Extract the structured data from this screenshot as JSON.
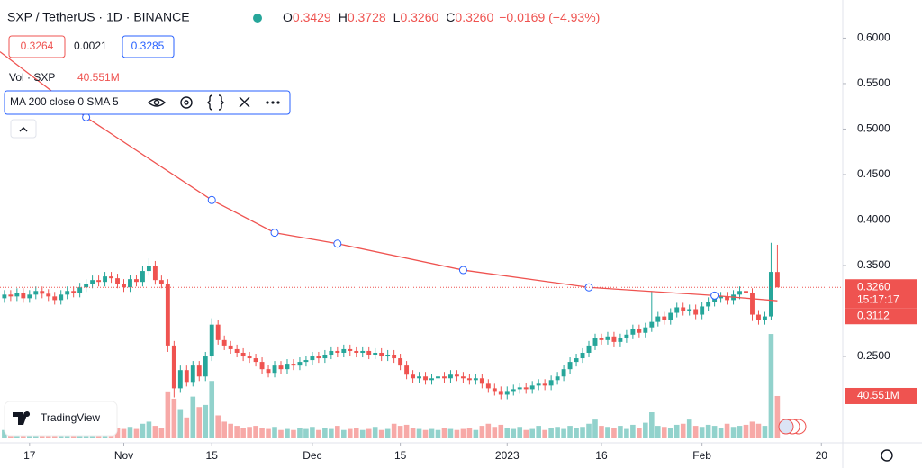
{
  "header": {
    "symbol": "SXP / TetherUS · 1D · BINANCE",
    "ohlc": [
      {
        "key": "O",
        "value": "0.3429"
      },
      {
        "key": "H",
        "value": "0.3728"
      },
      {
        "key": "L",
        "value": "0.3260"
      },
      {
        "key": "C",
        "value": "0.3260"
      }
    ],
    "change": "−0.0169 (−4.93%)",
    "bid": "0.3264",
    "spread": "0.0021",
    "ask": "0.3285"
  },
  "volume_legend": {
    "name": "Vol · SXP",
    "value": "40.551M"
  },
  "indicator_legend": "MA 200 close 0 SMA 5",
  "branding": "TradingView",
  "chart_data": {
    "type": "candlestick",
    "up_color": "#26a69a",
    "down_color": "#ef5350",
    "ylim": [
      0.155,
      0.642
    ],
    "yticks": [
      {
        "value": 0.6,
        "label": "0.6000"
      },
      {
        "value": 0.55,
        "label": "0.5500"
      },
      {
        "value": 0.5,
        "label": "0.5000"
      },
      {
        "value": 0.45,
        "label": "0.4500"
      },
      {
        "value": 0.4,
        "label": "0.4000"
      },
      {
        "value": 0.35,
        "label": "0.3500"
      },
      {
        "value": 0.25,
        "label": "0.2500"
      }
    ],
    "xlim": [
      -0.7,
      133.4
    ],
    "xticks": [
      {
        "value": 4,
        "label": "17"
      },
      {
        "value": 19,
        "label": "Nov"
      },
      {
        "value": 33,
        "label": "15"
      },
      {
        "value": 49,
        "label": "Dec"
      },
      {
        "value": 63,
        "label": "15"
      },
      {
        "value": 80,
        "label": "2023"
      },
      {
        "value": 95,
        "label": "16"
      },
      {
        "value": 111,
        "label": "Feb"
      },
      {
        "value": 130,
        "label": "20"
      }
    ],
    "open": [
      0.314,
      0.318,
      0.316,
      0.32,
      0.314,
      0.318,
      0.322,
      0.319,
      0.316,
      0.312,
      0.318,
      0.322,
      0.32,
      0.326,
      0.33,
      0.334,
      0.332,
      0.338,
      0.336,
      0.33,
      0.326,
      0.335,
      0.332,
      0.344,
      0.35,
      0.334,
      0.33,
      0.262,
      0.215,
      0.235,
      0.222,
      0.24,
      0.228,
      0.25,
      0.285,
      0.268,
      0.262,
      0.258,
      0.254,
      0.25,
      0.248,
      0.244,
      0.236,
      0.232,
      0.24,
      0.236,
      0.242,
      0.24,
      0.244,
      0.246,
      0.25,
      0.248,
      0.252,
      0.256,
      0.254,
      0.258,
      0.256,
      0.254,
      0.256,
      0.252,
      0.254,
      0.25,
      0.252,
      0.248,
      0.24,
      0.23,
      0.226,
      0.228,
      0.224,
      0.226,
      0.228,
      0.226,
      0.23,
      0.228,
      0.226,
      0.224,
      0.226,
      0.22,
      0.215,
      0.212,
      0.208,
      0.212,
      0.214,
      0.216,
      0.214,
      0.218,
      0.22,
      0.218,
      0.224,
      0.228,
      0.236,
      0.244,
      0.248,
      0.254,
      0.262,
      0.27,
      0.268,
      0.272,
      0.266,
      0.27,
      0.274,
      0.28,
      0.276,
      0.282,
      0.288,
      0.294,
      0.29,
      0.298,
      0.304,
      0.3,
      0.302,
      0.296,
      0.305,
      0.31,
      0.314,
      0.316,
      0.312,
      0.318,
      0.322,
      0.32,
      0.296,
      0.29,
      0.294,
      0.3429
    ],
    "high": [
      0.323,
      0.323,
      0.325,
      0.325,
      0.323,
      0.327,
      0.327,
      0.324,
      0.321,
      0.323,
      0.327,
      0.327,
      0.331,
      0.335,
      0.339,
      0.339,
      0.343,
      0.343,
      0.341,
      0.335,
      0.34,
      0.34,
      0.349,
      0.358,
      0.355,
      0.339,
      0.335,
      0.267,
      0.24,
      0.24,
      0.245,
      0.245,
      0.255,
      0.292,
      0.29,
      0.273,
      0.267,
      0.263,
      0.259,
      0.255,
      0.253,
      0.249,
      0.241,
      0.245,
      0.245,
      0.247,
      0.247,
      0.249,
      0.251,
      0.255,
      0.255,
      0.257,
      0.261,
      0.261,
      0.263,
      0.263,
      0.261,
      0.261,
      0.261,
      0.259,
      0.259,
      0.257,
      0.257,
      0.253,
      0.245,
      0.235,
      0.233,
      0.233,
      0.231,
      0.233,
      0.233,
      0.235,
      0.235,
      0.233,
      0.231,
      0.231,
      0.231,
      0.225,
      0.22,
      0.217,
      0.217,
      0.219,
      0.221,
      0.221,
      0.223,
      0.225,
      0.225,
      0.229,
      0.233,
      0.241,
      0.249,
      0.253,
      0.259,
      0.267,
      0.275,
      0.275,
      0.277,
      0.277,
      0.275,
      0.279,
      0.285,
      0.285,
      0.287,
      0.322,
      0.299,
      0.299,
      0.303,
      0.309,
      0.309,
      0.307,
      0.307,
      0.31,
      0.315,
      0.319,
      0.321,
      0.321,
      0.323,
      0.327,
      0.327,
      0.325,
      0.301,
      0.299,
      0.375,
      0.3728
    ],
    "low": [
      0.309,
      0.311,
      0.311,
      0.309,
      0.309,
      0.313,
      0.314,
      0.311,
      0.307,
      0.307,
      0.313,
      0.315,
      0.315,
      0.321,
      0.325,
      0.327,
      0.327,
      0.331,
      0.325,
      0.321,
      0.321,
      0.327,
      0.327,
      0.339,
      0.329,
      0.325,
      0.255,
      0.205,
      0.21,
      0.217,
      0.217,
      0.223,
      0.223,
      0.245,
      0.263,
      0.257,
      0.253,
      0.249,
      0.245,
      0.243,
      0.239,
      0.231,
      0.227,
      0.227,
      0.231,
      0.231,
      0.235,
      0.235,
      0.239,
      0.241,
      0.243,
      0.243,
      0.247,
      0.249,
      0.249,
      0.251,
      0.249,
      0.249,
      0.247,
      0.247,
      0.245,
      0.245,
      0.243,
      0.235,
      0.225,
      0.221,
      0.221,
      0.219,
      0.219,
      0.221,
      0.221,
      0.221,
      0.223,
      0.221,
      0.219,
      0.219,
      0.215,
      0.21,
      0.207,
      0.203,
      0.203,
      0.207,
      0.209,
      0.209,
      0.209,
      0.213,
      0.213,
      0.213,
      0.219,
      0.223,
      0.231,
      0.239,
      0.243,
      0.249,
      0.257,
      0.263,
      0.263,
      0.261,
      0.261,
      0.265,
      0.269,
      0.271,
      0.271,
      0.277,
      0.283,
      0.285,
      0.285,
      0.293,
      0.295,
      0.295,
      0.291,
      0.291,
      0.3,
      0.305,
      0.309,
      0.307,
      0.307,
      0.313,
      0.315,
      0.289,
      0.285,
      0.285,
      0.29,
      0.326
    ],
    "close": [
      0.318,
      0.316,
      0.32,
      0.314,
      0.318,
      0.322,
      0.319,
      0.316,
      0.312,
      0.318,
      0.322,
      0.32,
      0.326,
      0.33,
      0.334,
      0.332,
      0.338,
      0.336,
      0.33,
      0.326,
      0.335,
      0.332,
      0.344,
      0.35,
      0.334,
      0.33,
      0.262,
      0.215,
      0.235,
      0.222,
      0.24,
      0.228,
      0.25,
      0.285,
      0.268,
      0.262,
      0.258,
      0.254,
      0.25,
      0.248,
      0.244,
      0.236,
      0.232,
      0.24,
      0.236,
      0.242,
      0.24,
      0.244,
      0.246,
      0.25,
      0.248,
      0.252,
      0.256,
      0.254,
      0.258,
      0.256,
      0.254,
      0.256,
      0.252,
      0.254,
      0.25,
      0.252,
      0.248,
      0.24,
      0.23,
      0.226,
      0.228,
      0.224,
      0.226,
      0.228,
      0.226,
      0.23,
      0.228,
      0.226,
      0.224,
      0.226,
      0.22,
      0.215,
      0.212,
      0.208,
      0.212,
      0.214,
      0.216,
      0.214,
      0.218,
      0.22,
      0.218,
      0.224,
      0.228,
      0.236,
      0.244,
      0.248,
      0.254,
      0.262,
      0.27,
      0.268,
      0.272,
      0.266,
      0.27,
      0.274,
      0.28,
      0.276,
      0.282,
      0.288,
      0.294,
      0.29,
      0.298,
      0.304,
      0.3,
      0.302,
      0.296,
      0.305,
      0.31,
      0.314,
      0.316,
      0.312,
      0.318,
      0.322,
      0.32,
      0.296,
      0.29,
      0.294,
      0.343,
      0.326
    ],
    "last_label": "0.3260",
    "countdown": "15:17:17",
    "volume": {
      "ylim": [
        0,
        420
      ],
      "values": [
        8,
        6,
        7,
        9,
        6,
        7,
        8,
        6,
        10,
        7,
        8,
        6,
        9,
        8,
        10,
        7,
        9,
        8,
        10,
        9,
        11,
        9,
        14,
        16,
        12,
        10,
        45,
        38,
        28,
        20,
        40,
        30,
        32,
        55,
        22,
        16,
        14,
        12,
        10,
        11,
        12,
        10,
        9,
        11,
        8,
        9,
        8,
        10,
        9,
        11,
        8,
        10,
        9,
        12,
        8,
        9,
        10,
        8,
        9,
        11,
        8,
        9,
        14,
        12,
        13,
        10,
        9,
        8,
        9,
        8,
        10,
        9,
        8,
        9,
        10,
        8,
        12,
        14,
        11,
        13,
        10,
        9,
        11,
        8,
        9,
        12,
        8,
        10,
        11,
        9,
        12,
        10,
        11,
        14,
        18,
        12,
        11,
        10,
        12,
        9,
        13,
        10,
        15,
        25,
        12,
        11,
        10,
        13,
        14,
        18,
        12,
        11,
        13,
        12,
        10,
        14,
        11,
        12,
        13,
        16,
        14,
        12,
        100,
        40.551
      ],
      "last_label": "40.551M"
    },
    "ma": {
      "color": "#ef5350",
      "x": [
        -0.7,
        13,
        33,
        43,
        53,
        73,
        93,
        113,
        123
      ],
      "values": [
        0.585,
        0.513,
        0.422,
        0.386,
        0.374,
        0.345,
        0.326,
        0.317,
        0.3112
      ],
      "last_label": "0.3112"
    }
  }
}
